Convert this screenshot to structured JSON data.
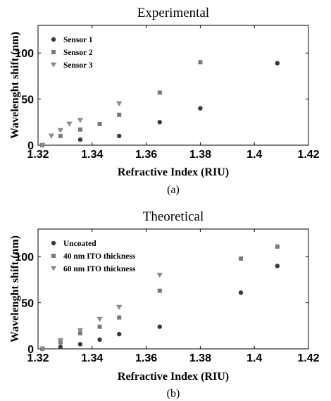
{
  "chart_data": [
    {
      "type": "scatter",
      "title": "Experimental",
      "sublabel": "(a)",
      "xlabel": "Refractive Index (RIU)",
      "ylabel": "Wavelenght shift (nm)",
      "xlim": [
        1.32,
        1.42
      ],
      "ylim": [
        0,
        130
      ],
      "xticks": [
        "1.32",
        "1.34",
        "1.36",
        "1.38",
        "1.4",
        "1.42"
      ],
      "yticks": [
        "0",
        "50",
        "100"
      ],
      "grid": false,
      "legend_position": "top-left",
      "series": [
        {
          "name": "Sensor 1",
          "marker": "circle",
          "color": "#3a3a3a",
          "x": [
            1.3216,
            1.3356,
            1.35,
            1.365,
            1.38,
            1.4085
          ],
          "y": [
            0,
            6,
            10,
            25,
            40,
            89
          ]
        },
        {
          "name": "Sensor 2",
          "marker": "square",
          "color": "#7a7a7a",
          "x": [
            1.3216,
            1.3283,
            1.3356,
            1.3428,
            1.35,
            1.365,
            1.38
          ],
          "y": [
            0,
            10,
            17,
            23,
            33,
            57,
            90
          ]
        },
        {
          "name": "Sensor 3",
          "marker": "triangle",
          "color": "#8a8a8a",
          "x": [
            1.3216,
            1.3249,
            1.3283,
            1.3316,
            1.3356,
            1.35
          ],
          "y": [
            0,
            10,
            16,
            23,
            27,
            45
          ]
        }
      ]
    },
    {
      "type": "scatter",
      "title": "Theoretical",
      "sublabel": "(b)",
      "xlabel": "Refractive Index (RIU)",
      "ylabel": "Wavelenght shift (nm)",
      "xlim": [
        1.32,
        1.42
      ],
      "ylim": [
        0,
        130
      ],
      "xticks": [
        "1.32",
        "1.34",
        "1.36",
        "1.38",
        "1.4",
        "1.42"
      ],
      "yticks": [
        "0",
        "50",
        "100"
      ],
      "grid": false,
      "legend_position": "top-left",
      "series": [
        {
          "name": "Uncoated",
          "marker": "circle",
          "color": "#3a3a3a",
          "x": [
            1.3216,
            1.3283,
            1.3356,
            1.3428,
            1.35,
            1.365,
            1.395,
            1.4085
          ],
          "y": [
            0,
            2,
            5,
            10,
            16,
            24,
            61,
            90
          ]
        },
        {
          "name": "40 nm ITO thickness",
          "marker": "square",
          "color": "#7a7a7a",
          "x": [
            1.3216,
            1.3283,
            1.3356,
            1.3428,
            1.35,
            1.365,
            1.395,
            1.4085
          ],
          "y": [
            0,
            7,
            17,
            24,
            34,
            63,
            98,
            111
          ]
        },
        {
          "name": "60 nm ITO thickness",
          "marker": "triangle",
          "color": "#8a8a8a",
          "x": [
            1.3216,
            1.3283,
            1.3356,
            1.3428,
            1.35,
            1.365
          ],
          "y": [
            0,
            9,
            20,
            32,
            45,
            80
          ]
        }
      ]
    }
  ]
}
